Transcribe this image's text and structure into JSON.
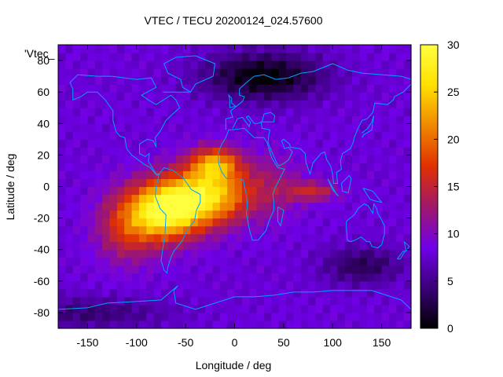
{
  "chart_data": {
    "type": "heatmap",
    "title": "VTEC / TECU 20200124_024.57600",
    "xlabel": "Longitude / deg",
    "ylabel": "Latitude / deg",
    "xlim": [
      -180,
      180
    ],
    "ylim": [
      -90,
      90
    ],
    "x_ticks": [
      -150,
      -100,
      -50,
      0,
      50,
      100,
      150
    ],
    "y_ticks": [
      -80,
      -60,
      -40,
      -20,
      0,
      20,
      40,
      60,
      80
    ],
    "colorbar": {
      "label": "",
      "range": [
        0,
        30
      ],
      "ticks": [
        0,
        5,
        10,
        15,
        20,
        25,
        30
      ],
      "colormap": [
        "#000000",
        "#3a0078",
        "#7000e8",
        "#a0186a",
        "#e03000",
        "#f08800",
        "#ffe000",
        "#ffff40"
      ]
    },
    "legend_entry": "'Vtec_",
    "coastlines_color": "#00a0ff",
    "background_vtec": 8,
    "features": [
      {
        "name": "equatorial anomaly peak (S. America)",
        "lon": -70,
        "lat": -15,
        "vtec": 29
      },
      {
        "name": "equatorial anomaly (Atlantic)",
        "lon": -25,
        "lat": -5,
        "vtec": 27
      },
      {
        "name": "northern crest",
        "lon": -20,
        "lat": 15,
        "vtec": 24
      },
      {
        "name": "Indian Ocean enhancement",
        "lon": 80,
        "lat": -3,
        "vtec": 16
      },
      {
        "name": "Arctic minimum",
        "lon": 30,
        "lat": 70,
        "vtec": 2
      },
      {
        "name": "Southern Ocean minimum",
        "lon": 130,
        "lat": -50,
        "vtec": 4
      }
    ]
  }
}
